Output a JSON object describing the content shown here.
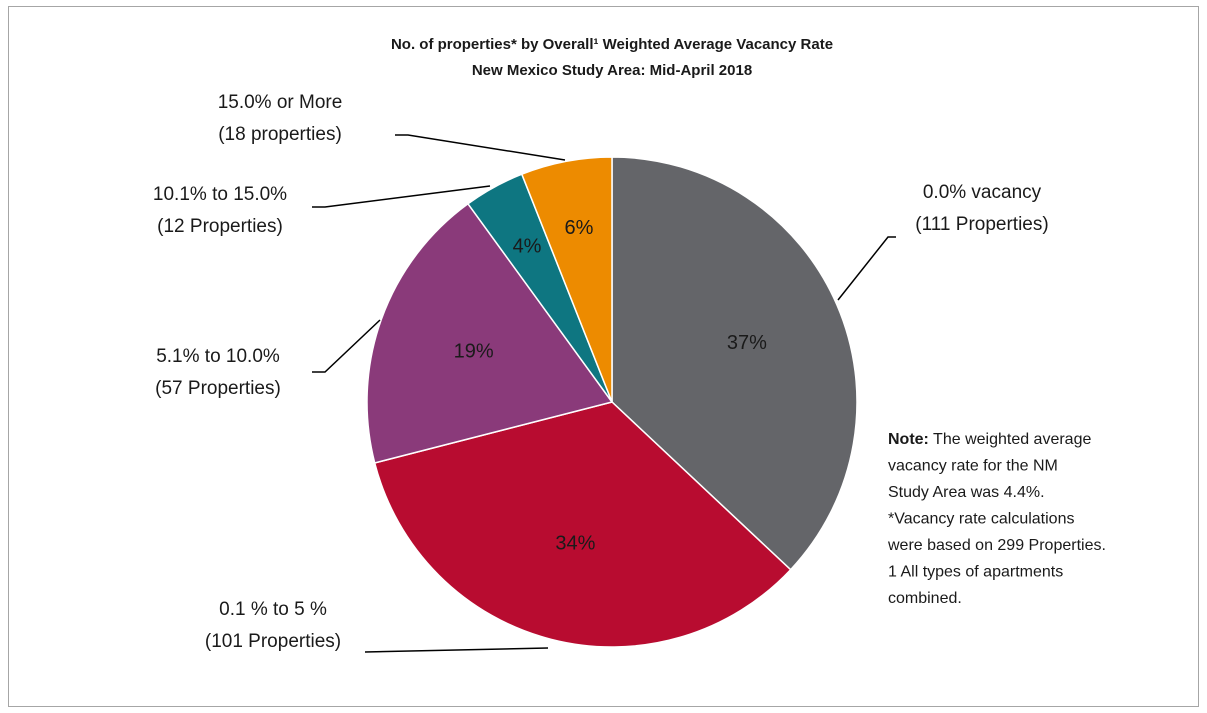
{
  "chart_data": {
    "type": "pie",
    "title": [
      "No. of properties* by Overall¹ Weighted Average Vacancy Rate",
      "New Mexico Study Area: Mid-April 2018"
    ],
    "categories": [
      "0.0% vacancy",
      "0.1 % to 5 %",
      "5.1% to 10.0%",
      "10.1% to 15.0%",
      "15.0% or More"
    ],
    "sublabels": [
      "(111 Properties)",
      "(101 Properties)",
      "(57 Properties)",
      "(12 Properties)",
      "(18 properties)"
    ],
    "values": [
      37,
      34,
      19,
      4,
      6
    ],
    "value_labels": [
      "37%",
      "34%",
      "19%",
      "4%",
      "6%"
    ],
    "colors": [
      "#646569",
      "#b80c30",
      "#8a3a7a",
      "#0e7681",
      "#ed8b00"
    ],
    "note": {
      "heading": "Note:",
      "lines": [
        " The weighted average",
        "vacancy rate for the NM",
        "Study Area was 4.4%.",
        "*Vacancy rate calculations",
        "were based on 299 Properties.",
        "1 All types of apartments",
        " combined."
      ]
    }
  }
}
